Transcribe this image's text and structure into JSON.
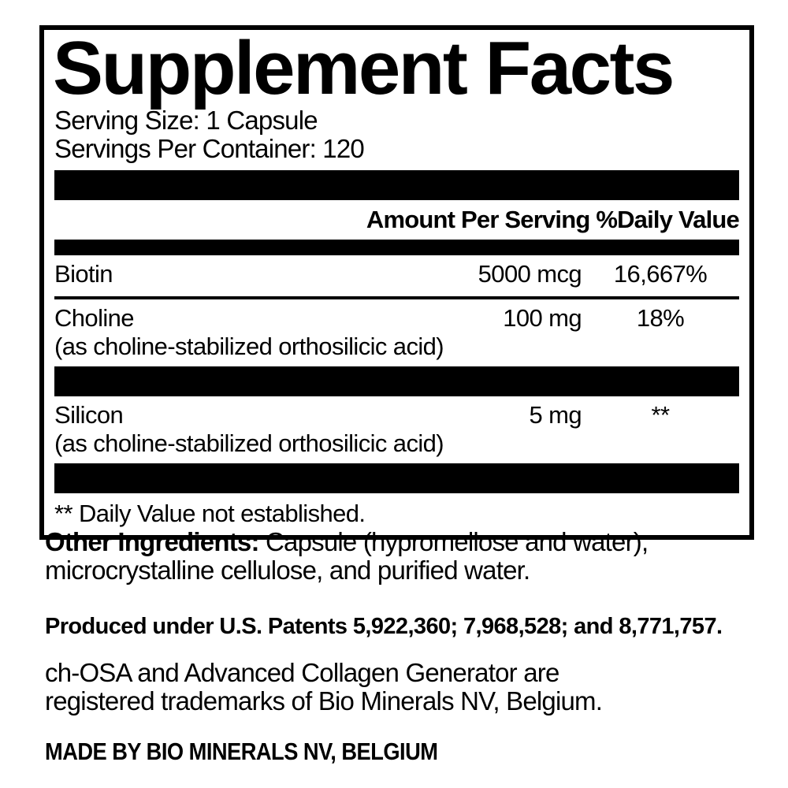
{
  "panel": {
    "title": "Supplement Facts",
    "serving_size": "Serving Size: 1 Capsule",
    "servings_per_container": "Servings Per Container: 120",
    "column_header": "Amount Per Serving %Daily Value",
    "rows": [
      {
        "name": "Biotin",
        "amount": "5000 mcg",
        "daily_value": "16,667%",
        "note": ""
      },
      {
        "name": "Choline",
        "amount": "100 mg",
        "daily_value": "18%",
        "note": "(as choline-stabilized orthosilicic acid)"
      },
      {
        "name": "Silicon",
        "amount": "5 mg",
        "daily_value": "**",
        "note": "(as choline-stabilized orthosilicic acid)"
      }
    ],
    "footnote": "** Daily Value not established."
  },
  "below": {
    "other_ingredients_label": "Other Ingredients:",
    "other_ingredients_line1": " Capsule (hypromellose and water),",
    "other_ingredients_line2": "microcrystalline cellulose, and purified water.",
    "patents": "Produced under U.S. Patents 5,922,360; 7,968,528; and 8,771,757.",
    "trademark_line1": "ch-OSA and Advanced Collagen Generator are",
    "trademark_line2": "registered trademarks of Bio Minerals NV, Belgium.",
    "made_by": "MADE BY BIO MINERALS NV, BELGIUM"
  },
  "colors": {
    "text": "#000000",
    "background": "#ffffff"
  }
}
